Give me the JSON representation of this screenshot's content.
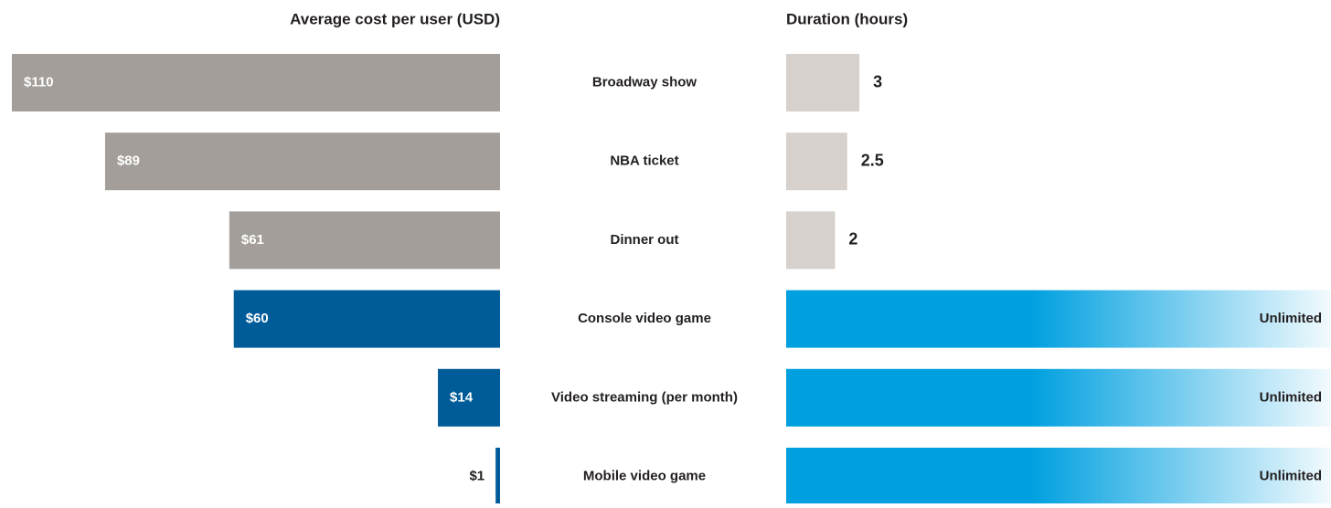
{
  "chart_data": [
    {
      "type": "bar",
      "title": "Average cost per user (USD)",
      "categories": [
        "Broadway show",
        "NBA ticket",
        "Dinner out",
        "Console video game",
        "Video streaming (per month)",
        "Mobile video game"
      ],
      "values": [
        110,
        89,
        61,
        60,
        14,
        1
      ],
      "value_labels": [
        "$110",
        "$89",
        "$61",
        "$60",
        "$14",
        "$1"
      ],
      "colors": [
        "#a39e99",
        "#a39e99",
        "#a39e99",
        "#005b99",
        "#005b99",
        "#005b99"
      ]
    },
    {
      "type": "bar",
      "title": "Duration (hours)",
      "values": [
        3,
        2.5,
        2,
        null,
        null,
        null
      ],
      "value_labels": [
        "3",
        "2.5",
        "2",
        "Unlimited",
        "Unlimited",
        "Unlimited"
      ],
      "colors": [
        "#d6d1cc",
        "#d6d1cc",
        "#d6d1cc",
        "#00a0e0",
        "#00a0e0",
        "#00a0e0"
      ]
    }
  ]
}
